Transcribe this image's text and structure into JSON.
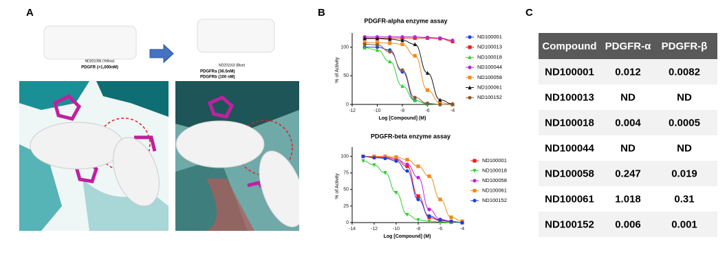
{
  "panels": [
    "A",
    "B",
    "C"
  ],
  "panel_a": {
    "left": {
      "compound": "ND201096 (Yellow)",
      "activity": "PDGFR (>1,000nM)"
    },
    "right": {
      "compound": "ND201163 (Blue)",
      "activity_a": "PDGFRa (36.5nM)",
      "activity_b": "PDGFRb (100 nM)"
    }
  },
  "chart_data": [
    {
      "type": "line",
      "title": "PDGFR-alpha enzyme assay",
      "x_label": "Log [Compound] (M)",
      "y_label": "% of Activity",
      "xlim": [
        -12,
        -4
      ],
      "xticks": [
        -12,
        -10,
        -8,
        -6,
        -4
      ],
      "ylim": [
        0,
        120
      ],
      "yticks": [
        0,
        50,
        100
      ],
      "x": [
        -11,
        -10,
        -9,
        -8,
        -7,
        -6,
        -5,
        -4
      ],
      "series": [
        {
          "name": "ND100001",
          "color": "#1f3fe0",
          "marker": "circle",
          "values": [
            100,
            100,
            95,
            57,
            7,
            1,
            0,
            0
          ]
        },
        {
          "name": "ND100013",
          "color": "#e8201c",
          "marker": "square",
          "values": [
            116,
            116,
            116,
            116,
            116,
            116,
            115,
            110
          ]
        },
        {
          "name": "ND100018",
          "color": "#2fcf2f",
          "marker": "triangle",
          "values": [
            99,
            95,
            75,
            32,
            7,
            1,
            0,
            0
          ]
        },
        {
          "name": "ND100044",
          "color": "#b52ad8",
          "marker": "circle",
          "values": [
            118,
            118,
            118,
            118,
            118,
            117,
            116,
            112
          ]
        },
        {
          "name": "ND100058",
          "color": "#f28a1c",
          "marker": "square",
          "values": [
            108,
            108,
            107,
            105,
            85,
            25,
            3,
            0
          ]
        },
        {
          "name": "ND100061",
          "color": "#111111",
          "marker": "triangle",
          "values": [
            115,
            115,
            114,
            112,
            105,
            55,
            8,
            1
          ]
        },
        {
          "name": "ND100152",
          "color": "#8a5a2b",
          "marker": "circle",
          "values": [
            105,
            104,
            92,
            60,
            12,
            2,
            0,
            0
          ]
        }
      ]
    },
    {
      "type": "line",
      "title": "PDGFR-beta enzyme assay",
      "x_label": "Log [Compound] (M)",
      "y_label": "% of Activity",
      "xlim": [
        -14,
        -4
      ],
      "xticks": [
        -14,
        -12,
        -10,
        -8,
        -6,
        -4
      ],
      "ylim": [
        0,
        110
      ],
      "yticks": [
        0,
        25,
        50,
        75,
        100
      ],
      "x": [
        -13,
        -12,
        -11,
        -10,
        -9,
        -8,
        -7,
        -6,
        -5,
        -4
      ],
      "series": [
        {
          "name": "ND100001",
          "color": "#e8201c",
          "marker": "square",
          "values": [
            100,
            99,
            98,
            95,
            85,
            40,
            8,
            3,
            1,
            0
          ]
        },
        {
          "name": "ND100018",
          "color": "#2fcf2f",
          "marker": "triangle-down",
          "values": [
            93,
            87,
            75,
            45,
            12,
            4,
            2,
            1,
            0,
            0
          ]
        },
        {
          "name": "ND100058",
          "color": "#c81fd8",
          "marker": "circle",
          "values": [
            100,
            100,
            99,
            97,
            88,
            68,
            20,
            5,
            2,
            0
          ]
        },
        {
          "name": "ND100061",
          "color": "#f28a1c",
          "marker": "square",
          "values": [
            100,
            100,
            100,
            99,
            95,
            85,
            70,
            35,
            8,
            2
          ]
        },
        {
          "name": "ND100152",
          "color": "#1f3fe0",
          "marker": "circle",
          "values": [
            100,
            98,
            97,
            93,
            78,
            35,
            10,
            4,
            2,
            0
          ]
        }
      ]
    }
  ],
  "table": {
    "header": [
      "Compound",
      "PDGFR-α",
      "PDGFR-β"
    ],
    "rows": [
      [
        "ND100001",
        "0.012",
        "0.0082"
      ],
      [
        "ND100013",
        "ND",
        "ND"
      ],
      [
        "ND100018",
        "0.004",
        "0.0005"
      ],
      [
        "ND100044",
        "ND",
        "ND"
      ],
      [
        "ND100058",
        "0.247",
        "0.019"
      ],
      [
        "ND100061",
        "1.018",
        "0.31"
      ],
      [
        "ND100152",
        "0.006",
        "0.001"
      ]
    ]
  }
}
